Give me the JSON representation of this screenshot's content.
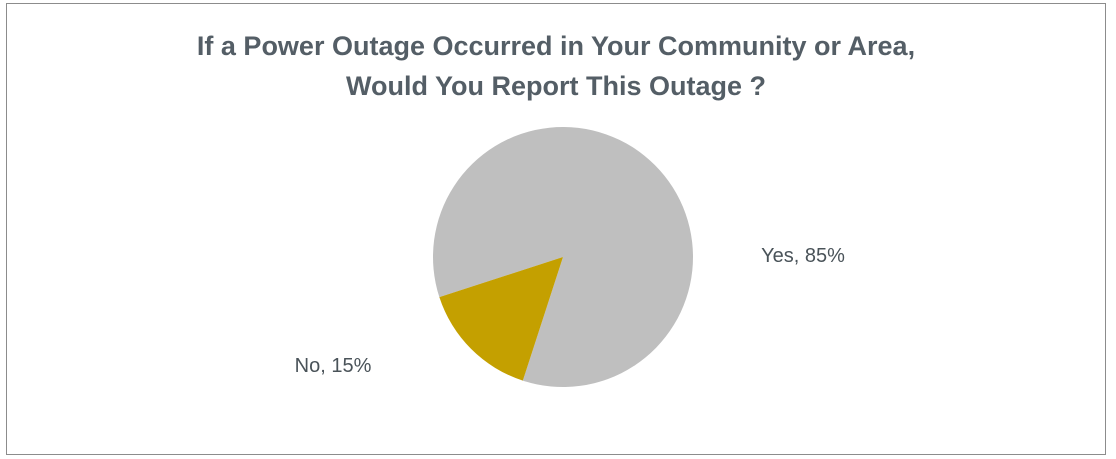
{
  "chart_data": {
    "type": "pie",
    "title": [
      "If a Power Outage Occurred in Your Community or Area,",
      "Would You Report This Outage ?"
    ],
    "slices": [
      {
        "label": "Yes",
        "value": 85,
        "color": "#bfbfbf",
        "data_label": "Yes, 85%"
      },
      {
        "label": "No",
        "value": 15,
        "color": "#c4a000",
        "data_label": "No, 15%"
      }
    ],
    "legend": "none",
    "data_labels": "outside"
  }
}
